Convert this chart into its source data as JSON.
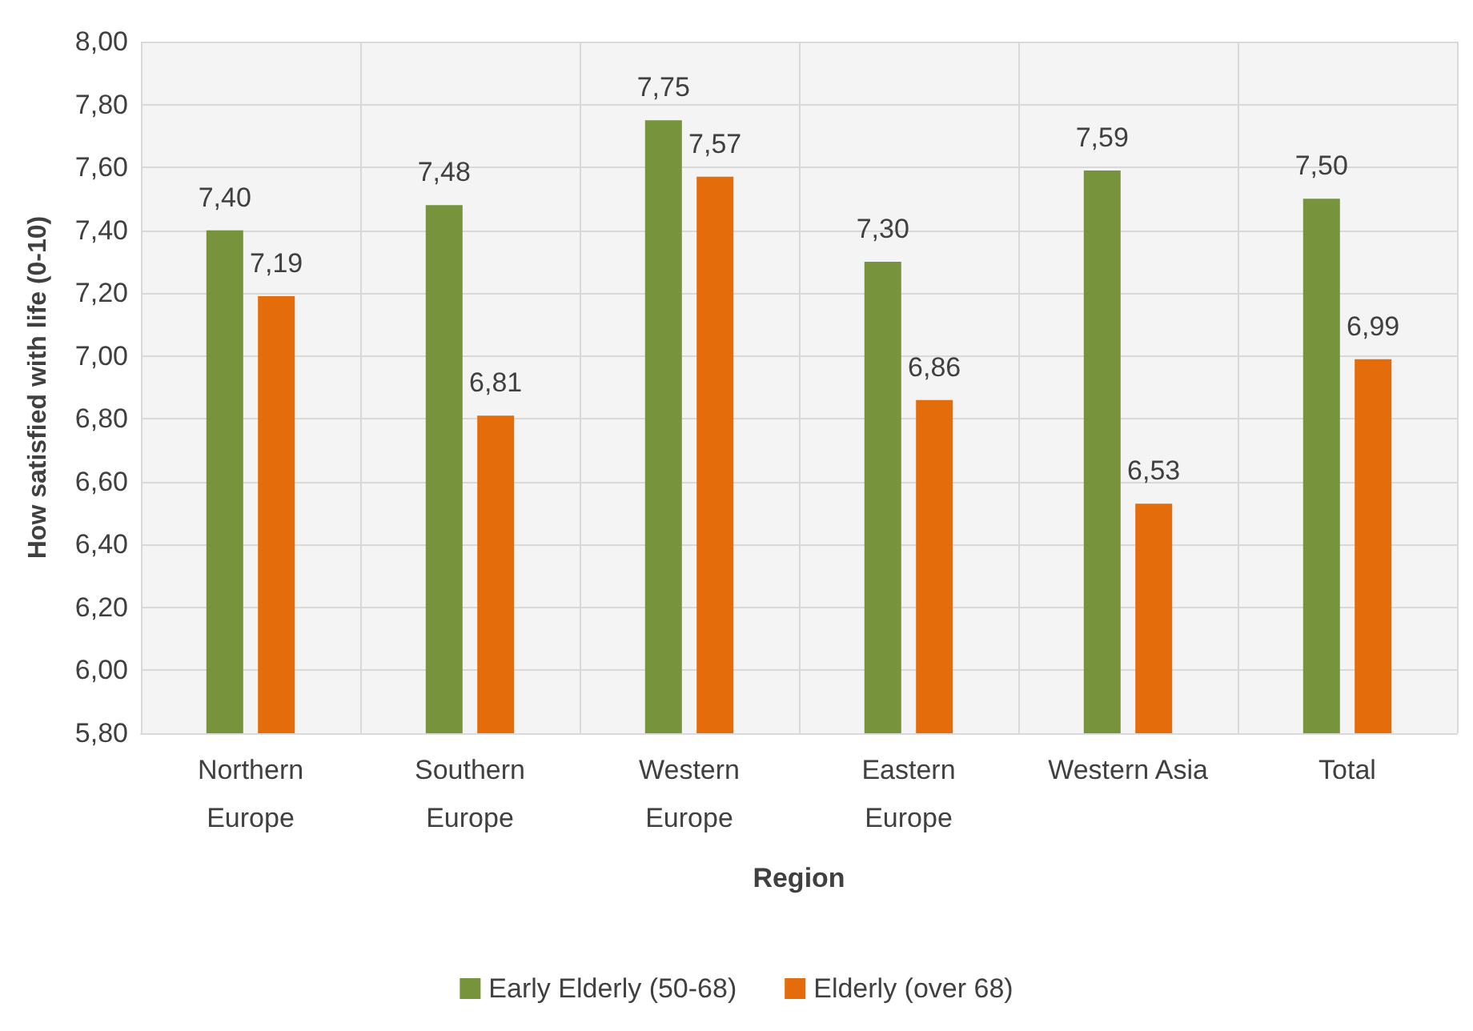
{
  "chart_data": {
    "type": "bar",
    "xlabel": "Region",
    "ylabel": "How satisfied with life (0-10)",
    "categories": [
      "Northern\nEurope",
      "Southern\nEurope",
      "Western\nEurope",
      "Eastern\nEurope",
      "Western Asia",
      "Total"
    ],
    "series": [
      {
        "name": "Early Elderly (50-68)",
        "color": "#77933c",
        "values": [
          7.4,
          7.48,
          7.75,
          7.3,
          7.59,
          7.5
        ],
        "value_labels": [
          "7,40",
          "7,48",
          "7,75",
          "7,30",
          "7,59",
          "7,50"
        ]
      },
      {
        "name": "Elderly (over 68)",
        "color": "#e46c0a",
        "values": [
          7.19,
          6.81,
          7.57,
          6.86,
          6.53,
          6.99
        ],
        "value_labels": [
          "7,19",
          "6,81",
          "7,57",
          "6,86",
          "6,53",
          "6,99"
        ]
      }
    ],
    "ylim": [
      5.8,
      8.0
    ],
    "yticks": [
      {
        "value": 5.8,
        "label": "5,80"
      },
      {
        "value": 6.0,
        "label": "6,00"
      },
      {
        "value": 6.2,
        "label": "6,20"
      },
      {
        "value": 6.4,
        "label": "6,40"
      },
      {
        "value": 6.6,
        "label": "6,60"
      },
      {
        "value": 6.8,
        "label": "6,80"
      },
      {
        "value": 7.0,
        "label": "7,00"
      },
      {
        "value": 7.2,
        "label": "7,20"
      },
      {
        "value": 7.4,
        "label": "7,40"
      },
      {
        "value": 7.6,
        "label": "7,60"
      },
      {
        "value": 7.8,
        "label": "7,80"
      },
      {
        "value": 8.0,
        "label": "8,00"
      }
    ],
    "grid": true,
    "legend": "bottom"
  }
}
